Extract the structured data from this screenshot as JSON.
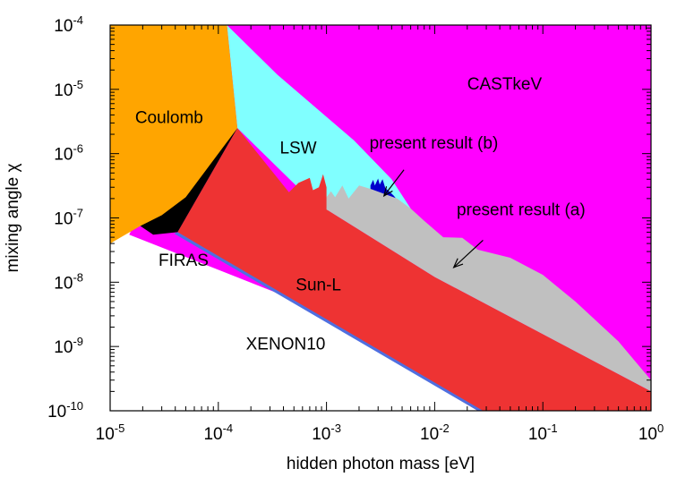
{
  "chart_data": {
    "type": "area",
    "title": "",
    "xlabel": "hidden photon mass [eV]",
    "ylabel": "mixing angle χ",
    "xscale": "log",
    "yscale": "log",
    "xlim": [
      1e-05,
      1
    ],
    "ylim": [
      1e-10,
      0.0001
    ],
    "grid": false,
    "x_ticks": [
      {
        "base": "10",
        "exp": "-5",
        "value": 1e-05
      },
      {
        "base": "10",
        "exp": "-4",
        "value": 0.0001
      },
      {
        "base": "10",
        "exp": "-3",
        "value": 0.001
      },
      {
        "base": "10",
        "exp": "-2",
        "value": 0.01
      },
      {
        "base": "10",
        "exp": "-1",
        "value": 0.1
      },
      {
        "base": "10",
        "exp": "0",
        "value": 1
      }
    ],
    "y_ticks": [
      {
        "base": "10",
        "exp": "-10",
        "value": 1e-10
      },
      {
        "base": "10",
        "exp": "-9",
        "value": 1e-09
      },
      {
        "base": "10",
        "exp": "-8",
        "value": 1e-08
      },
      {
        "base": "10",
        "exp": "-7",
        "value": 1e-07
      },
      {
        "base": "10",
        "exp": "-6",
        "value": 1e-06
      },
      {
        "base": "10",
        "exp": "-5",
        "value": 1e-05
      },
      {
        "base": "10",
        "exp": "-4",
        "value": 0.0001
      }
    ],
    "regions": [
      {
        "name": "CASTkeV",
        "color": "#ff00ff",
        "points": [
          [
            0.00012,
            0.0001
          ],
          [
            1,
            0.0001
          ],
          [
            1,
            1e-10
          ],
          [
            0.2,
            1e-10
          ],
          [
            1.5e-05,
            5.5e-08
          ],
          [
            0.00012,
            0.0001
          ]
        ]
      },
      {
        "name": "LSW",
        "color": "#80ffff",
        "points": [
          [
            0.00012,
            0.0001
          ],
          [
            0.00035,
            1.7e-05
          ],
          [
            0.0018,
            1.6e-06
          ],
          [
            0.004,
            4e-07
          ],
          [
            0.006,
            1.4e-07
          ],
          [
            0.0009,
            1.3e-07
          ],
          [
            0.00015,
            2.5e-06
          ],
          [
            0.00012,
            0.0001
          ]
        ]
      },
      {
        "name": "present result (b)",
        "color": "#0000cc",
        "points": [
          [
            0.00255,
            3.2e-07
          ],
          [
            0.0027,
            3.9e-07
          ],
          [
            0.0028,
            3.2e-07
          ],
          [
            0.003,
            4.1e-07
          ],
          [
            0.0031,
            3.3e-07
          ],
          [
            0.0033,
            4e-07
          ],
          [
            0.0035,
            2.9e-07
          ],
          [
            0.0038,
            2.6e-07
          ],
          [
            0.0042,
            2.2e-07
          ],
          [
            0.0045,
            1.9e-07
          ],
          [
            0.0038,
            1.7e-07
          ],
          [
            0.0033,
            1.9e-07
          ],
          [
            0.0029,
            2.3e-07
          ],
          [
            0.00255,
            2.7e-07
          ]
        ]
      },
      {
        "name": "present result (a)",
        "color": "#c0c0c0",
        "points": [
          [
            0.001,
            1.35e-07
          ],
          [
            0.001,
            2.1e-07
          ],
          [
            0.0011,
            2.6e-07
          ],
          [
            0.0012,
            2.1e-07
          ],
          [
            0.0014,
            3.2e-07
          ],
          [
            0.0016,
            2e-07
          ],
          [
            0.002,
            3.2e-07
          ],
          [
            0.0026,
            2.8e-07
          ],
          [
            0.0045,
            2e-07
          ],
          [
            0.006,
            1.4e-07
          ],
          [
            0.008,
            9e-08
          ],
          [
            0.012,
            5e-08
          ],
          [
            0.018,
            4.9e-08
          ],
          [
            0.025,
            3.2e-08
          ],
          [
            0.05,
            2.4e-08
          ],
          [
            0.1,
            1.3e-08
          ],
          [
            0.2,
            5e-09
          ],
          [
            0.5,
            1.2e-09
          ],
          [
            1,
            3e-10
          ],
          [
            1,
            2e-10
          ],
          [
            0.01,
            1.2e-08
          ],
          [
            0.001,
            1.35e-07
          ]
        ]
      },
      {
        "name": "Sun-L",
        "color": "#ee3333",
        "points": [
          [
            4.2e-05,
            6e-08
          ],
          [
            0.00015,
            2.5e-06
          ],
          [
            0.00045,
            2.5e-07
          ],
          [
            0.00055,
            3.5e-07
          ],
          [
            0.0007,
            4.2e-07
          ],
          [
            0.00075,
            2.7e-07
          ],
          [
            0.00085,
            3e-07
          ],
          [
            0.00093,
            4.8e-07
          ],
          [
            0.001,
            3e-07
          ],
          [
            0.001,
            1.35e-07
          ],
          [
            0.01,
            1.2e-08
          ],
          [
            1,
            2e-10
          ],
          [
            1,
            1e-10
          ],
          [
            0.025,
            1e-10
          ],
          [
            4.2e-05,
            6e-08
          ]
        ]
      },
      {
        "name": "FIRAS",
        "color": "#000000",
        "points": [
          [
            1.9e-05,
            7.5e-08
          ],
          [
            0.00015,
            2.5e-06
          ],
          [
            4.2e-05,
            6e-08
          ],
          [
            2.5e-05,
            5.5e-08
          ],
          [
            1.9e-05,
            7.5e-08
          ]
        ]
      },
      {
        "name": "XENON10",
        "color": "#4f6fe0",
        "points": [
          [
            3.9e-05,
            5.7e-08
          ],
          [
            4.2e-05,
            6e-08
          ],
          [
            0.028,
            1e-10
          ],
          [
            0.025,
            1e-10
          ],
          [
            3.9e-05,
            5.7e-08
          ]
        ]
      },
      {
        "name": "Coulomb",
        "color": "#ffa500",
        "points": [
          [
            1e-05,
            0.0001
          ],
          [
            0.00012,
            0.0001
          ],
          [
            0.00015,
            2.5e-06
          ],
          [
            5e-05,
            2.1e-07
          ],
          [
            3e-05,
            1.1e-07
          ],
          [
            1.9e-05,
            7.5e-08
          ],
          [
            1e-05,
            4e-08
          ],
          [
            1e-05,
            0.0001
          ]
        ]
      }
    ],
    "labels": [
      {
        "text": "Coulomb",
        "x": 1.7e-05,
        "y": 3e-06
      },
      {
        "text": "CASTkeV",
        "x": 0.02,
        "y": 1e-05
      },
      {
        "text": "LSW",
        "x": 0.00037,
        "y": 1e-06
      },
      {
        "text": "present result (b)",
        "x": 0.0025,
        "y": 1.2e-06
      },
      {
        "text": "present result (a)",
        "x": 0.016,
        "y": 1.1e-07
      },
      {
        "text": "FIRAS",
        "x": 2.8e-05,
        "y": 1.8e-08
      },
      {
        "text": "Sun-L",
        "x": 0.00052,
        "y": 7.5e-09
      },
      {
        "text": "XENON10",
        "x": 0.00018,
        "y": 9e-10
      }
    ],
    "arrows": [
      {
        "name": "present result (b)",
        "from": [
          0.0052,
          5.6e-07
        ],
        "to": [
          0.0034,
          2.2e-07
        ]
      },
      {
        "name": "present result (a)",
        "from": [
          0.028,
          4.5e-08
        ],
        "to": [
          0.015,
          1.7e-08
        ]
      }
    ]
  }
}
